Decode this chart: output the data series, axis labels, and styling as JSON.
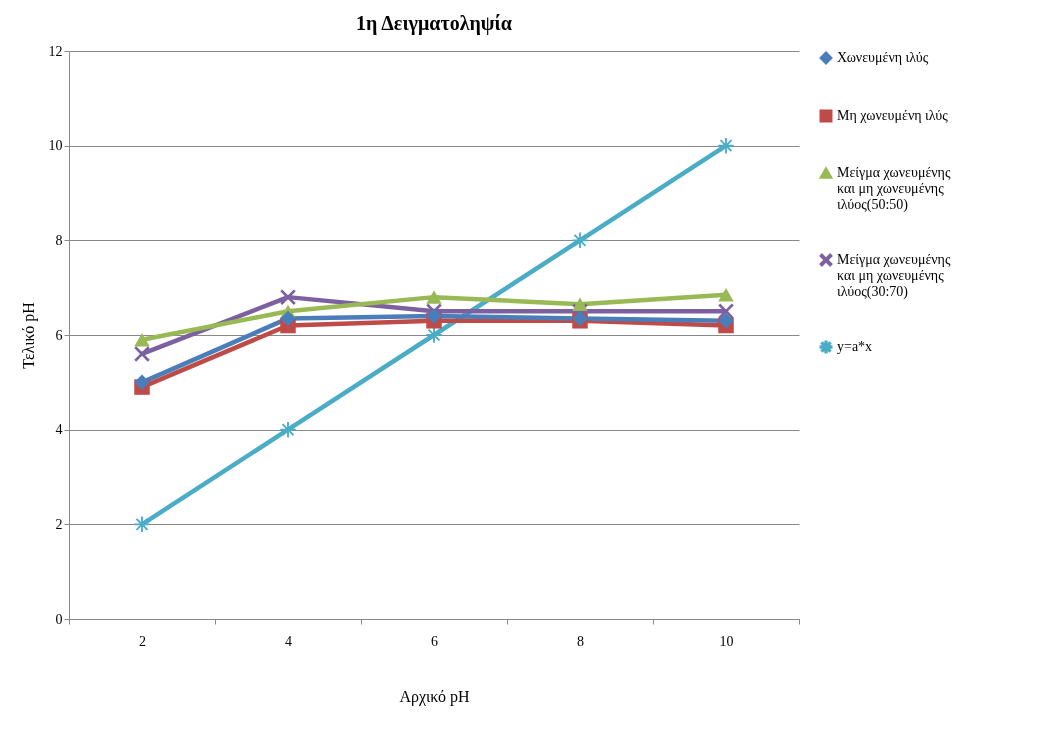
{
  "chart_data": {
    "type": "line",
    "title": "1η Δειγματοληψία",
    "xlabel": "Αρχικό pH",
    "ylabel": "Τελικό pH",
    "categories": [
      "2",
      "4",
      "6",
      "8",
      "10"
    ],
    "ylim": [
      0,
      12
    ],
    "yticks": [
      0,
      2,
      4,
      6,
      8,
      10,
      12
    ],
    "grid": "y",
    "legend": "right",
    "series": [
      {
        "name": "Χωνευμένη ιλύς",
        "color": "#4a7ebb",
        "marker": "diamond",
        "values": [
          5.0,
          6.35,
          6.4,
          6.35,
          6.3
        ]
      },
      {
        "name": "Μη χωνευμένη ιλύς",
        "color": "#be4b48",
        "marker": "square",
        "values": [
          4.9,
          6.2,
          6.3,
          6.3,
          6.2
        ]
      },
      {
        "name": "Μείγμα χωνευμένης και μη χωνευμένης ιλύος(50:50)",
        "color": "#98b954",
        "marker": "triangle",
        "values": [
          5.9,
          6.5,
          6.8,
          6.65,
          6.85
        ]
      },
      {
        "name": "Μείγμα χωνευμένης και μη χωνευμένης ιλύος(30:70)",
        "color": "#7d60a0",
        "marker": "cross",
        "values": [
          5.6,
          6.8,
          6.5,
          6.5,
          6.5
        ]
      },
      {
        "name": "y=a*x",
        "color": "#4bacc6",
        "marker": "star",
        "values": [
          2,
          4,
          6,
          8,
          10
        ]
      }
    ]
  }
}
